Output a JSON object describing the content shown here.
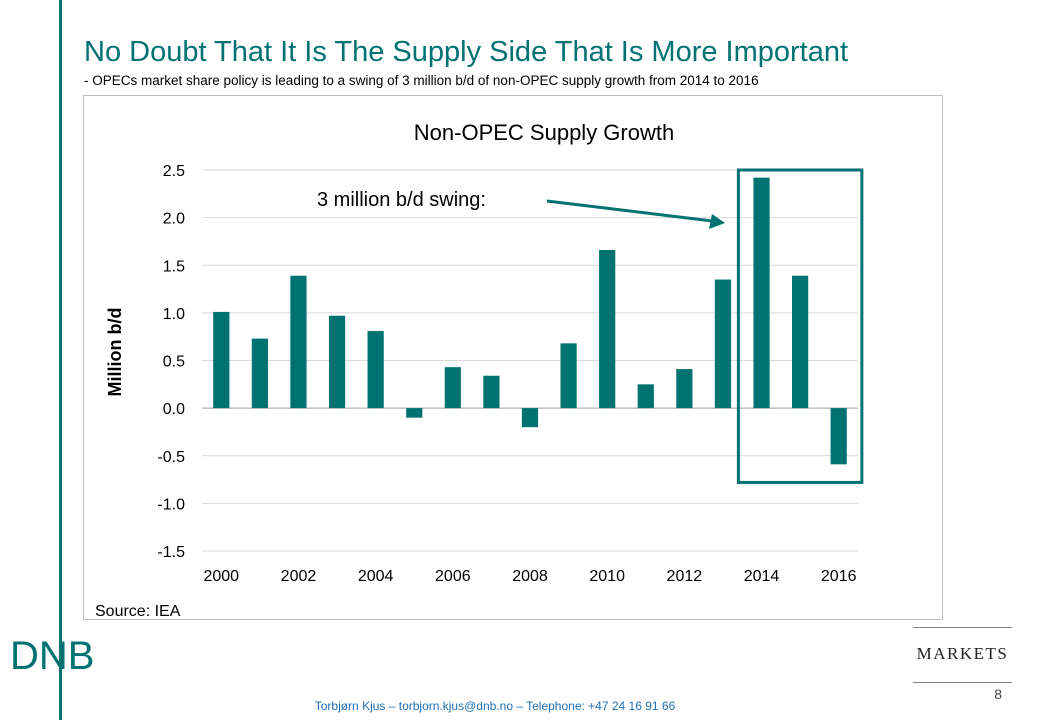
{
  "slide": {
    "title": "No Doubt That It Is The Supply Side That Is More Important",
    "subtitle": "- OPECs market share policy is leading to a swing of 3 million b/d of non-OPEC supply growth from 2014 to 2016",
    "footer": "Torbjørn Kjus – torbjorn.kjus@dnb.no – Telephone:  +47 24 16 91 66",
    "page_number": "8",
    "logo_text": "DNB",
    "markets_label": "MARKETS"
  },
  "colors": {
    "brand": "#007272",
    "bar": "#007272",
    "footer_text": "#1f6fb2",
    "grid": "#d9d9d9",
    "text": "#000000"
  },
  "chart_data": {
    "type": "bar",
    "title": "Non-OPEC Supply Growth",
    "ylabel": "Million b/d",
    "xlabel": "",
    "x": [
      2000,
      2001,
      2002,
      2003,
      2004,
      2005,
      2006,
      2007,
      2008,
      2009,
      2010,
      2011,
      2012,
      2013,
      2014,
      2015,
      2016
    ],
    "values": [
      1.01,
      0.73,
      1.39,
      0.97,
      0.81,
      -0.1,
      0.43,
      0.34,
      -0.2,
      0.68,
      1.66,
      0.25,
      0.41,
      1.35,
      2.42,
      1.39,
      -0.59
    ],
    "x_tick_labels": [
      "2000",
      "2002",
      "2004",
      "2006",
      "2008",
      "2010",
      "2012",
      "2014",
      "2016"
    ],
    "y_ticks": [
      2.5,
      2.0,
      1.5,
      1.0,
      0.5,
      0.0,
      -0.5,
      -1.0,
      -1.5
    ],
    "y_tick_labels": [
      "2.5",
      "2.0",
      "1.5",
      "1.0",
      "0.5",
      "0.0",
      "-0.5",
      "-1.0",
      "-1.5"
    ],
    "ylim": [
      -1.5,
      2.5
    ],
    "grid": "horizontal",
    "annotation": {
      "text": "3 million b/d swing:",
      "highlight_years": [
        2014,
        2016
      ]
    },
    "source": "Source: IEA"
  }
}
